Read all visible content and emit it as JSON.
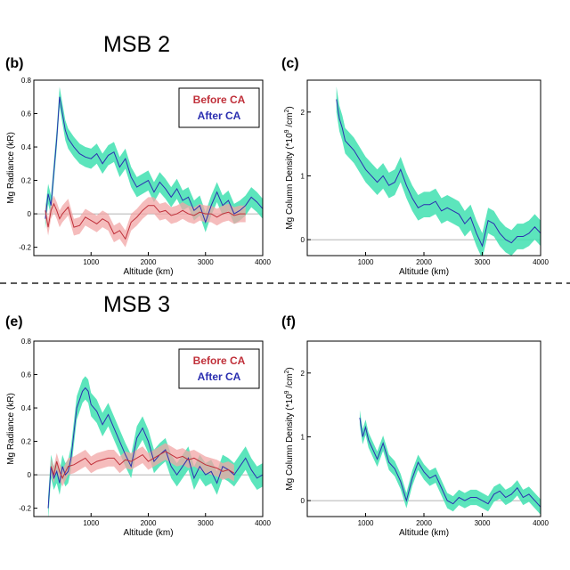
{
  "sections": [
    "MSB 2",
    "MSB 3"
  ],
  "legend": {
    "before": "Before CA",
    "after": "After CA"
  },
  "colors": {
    "before_line": "#c0303a",
    "before_band": "#f2a6a6",
    "after_line": "#2b2fb0",
    "after_band": "#3fe0b0",
    "zero_line": "#999999"
  },
  "chart_data": [
    {
      "panel": "(b)",
      "type": "line",
      "title": "",
      "xlabel": "Altitude (km)",
      "ylabel": "Mg Radiance (kR)",
      "xlim": [
        0,
        4000
      ],
      "ylim": [
        -0.25,
        0.8
      ],
      "xticks": [
        1000,
        2000,
        3000,
        4000
      ],
      "yticks": [
        -0.2,
        0,
        0.2,
        0.4,
        0.6,
        0.8
      ],
      "xtick_labels": [
        "1000",
        "2000",
        "3000",
        "4000"
      ],
      "ytick_labels": [
        "-0.2",
        "0",
        "0.2",
        "0.4",
        "0.6",
        "0.8"
      ],
      "legend": true,
      "series": [
        {
          "name": "After CA",
          "band": 0.06,
          "x": [
            200,
            250,
            300,
            350,
            400,
            450,
            500,
            550,
            600,
            700,
            800,
            900,
            1000,
            1100,
            1200,
            1300,
            1400,
            1500,
            1600,
            1700,
            1800,
            1900,
            2000,
            2100,
            2200,
            2300,
            2400,
            2500,
            2600,
            2700,
            2800,
            2900,
            3000,
            3100,
            3200,
            3300,
            3400,
            3500,
            3600,
            3700,
            3800,
            3900,
            4000
          ],
          "values": [
            -0.03,
            0.12,
            0.05,
            0.25,
            0.45,
            0.7,
            0.6,
            0.5,
            0.45,
            0.4,
            0.36,
            0.34,
            0.33,
            0.36,
            0.3,
            0.35,
            0.37,
            0.28,
            0.33,
            0.22,
            0.16,
            0.18,
            0.2,
            0.13,
            0.19,
            0.15,
            0.1,
            0.15,
            0.08,
            0.1,
            0.02,
            0.05,
            -0.05,
            0.05,
            0.13,
            0.05,
            0.08,
            0.0,
            0.02,
            0.05,
            0.1,
            0.07,
            0.03
          ]
        },
        {
          "name": "Before CA",
          "band": 0.05,
          "x": [
            200,
            250,
            300,
            350,
            400,
            450,
            500,
            600,
            700,
            800,
            900,
            1000,
            1100,
            1200,
            1300,
            1400,
            1500,
            1600,
            1700,
            1800,
            1900,
            2000,
            2100,
            2200,
            2300,
            2400,
            2500,
            2600,
            2700,
            2800,
            2900,
            3000,
            3100,
            3200,
            3300,
            3400,
            3500,
            3600,
            3700
          ],
          "values": [
            0.02,
            -0.08,
            0.02,
            0.06,
            0.02,
            -0.03,
            0.0,
            0.04,
            -0.08,
            -0.07,
            -0.02,
            -0.04,
            -0.06,
            -0.03,
            -0.05,
            -0.12,
            -0.1,
            -0.15,
            -0.05,
            -0.02,
            0.02,
            0.05,
            0.05,
            0.01,
            0.02,
            -0.01,
            0.0,
            0.02,
            0.0,
            -0.01,
            0.01,
            0.0,
            0.0,
            -0.02,
            0.0,
            0.01,
            -0.01,
            0.0,
            0.0
          ]
        }
      ]
    },
    {
      "panel": "(c)",
      "type": "line",
      "title": "",
      "xlabel": "Altitude (km)",
      "ylabel": "Mg Column Density (*10^9 /cm^2)",
      "xlim": [
        0,
        4000
      ],
      "ylim": [
        -0.25,
        2.5
      ],
      "xticks": [
        1000,
        2000,
        3000,
        4000
      ],
      "yticks": [
        0,
        1,
        2
      ],
      "xtick_labels": [
        "1000",
        "2000",
        "3000",
        "4000"
      ],
      "ytick_labels": [
        "0",
        "1",
        "2"
      ],
      "legend": false,
      "series": [
        {
          "name": "After CA",
          "band": 0.2,
          "x": [
            500,
            550,
            600,
            650,
            700,
            800,
            900,
            1000,
            1100,
            1200,
            1300,
            1400,
            1500,
            1600,
            1700,
            1800,
            1900,
            2000,
            2100,
            2200,
            2300,
            2400,
            2500,
            2600,
            2700,
            2800,
            2900,
            3000,
            3100,
            3200,
            3300,
            3400,
            3500,
            3600,
            3700,
            3800,
            3900,
            4000
          ],
          "values": [
            2.2,
            1.9,
            1.75,
            1.55,
            1.5,
            1.4,
            1.25,
            1.1,
            1.0,
            0.9,
            1.0,
            0.85,
            0.9,
            1.1,
            0.85,
            0.65,
            0.5,
            0.55,
            0.55,
            0.6,
            0.45,
            0.5,
            0.45,
            0.4,
            0.25,
            0.35,
            0.1,
            -0.1,
            0.3,
            0.25,
            0.1,
            0.0,
            -0.05,
            0.05,
            0.05,
            0.1,
            0.2,
            0.1
          ]
        }
      ]
    },
    {
      "panel": "(e)",
      "type": "line",
      "title": "",
      "xlabel": "Altitude (km)",
      "ylabel": "Mg Radiance (kR)",
      "xlim": [
        0,
        4000
      ],
      "ylim": [
        -0.25,
        0.8
      ],
      "xticks": [
        1000,
        2000,
        3000,
        4000
      ],
      "yticks": [
        -0.2,
        0,
        0.2,
        0.4,
        0.6,
        0.8
      ],
      "xtick_labels": [
        "1000",
        "2000",
        "3000",
        "4000"
      ],
      "ytick_labels": [
        "-0.2",
        "0",
        "0.2",
        "0.4",
        "0.6",
        "0.8"
      ],
      "legend": true,
      "series": [
        {
          "name": "After CA",
          "band": 0.07,
          "x": [
            250,
            300,
            350,
            400,
            450,
            500,
            550,
            600,
            650,
            700,
            750,
            800,
            850,
            900,
            950,
            1000,
            1100,
            1200,
            1300,
            1400,
            1500,
            1600,
            1700,
            1800,
            1900,
            2000,
            2100,
            2200,
            2300,
            2400,
            2500,
            2600,
            2700,
            2800,
            2900,
            3000,
            3100,
            3200,
            3300,
            3400,
            3500,
            3600,
            3700,
            3800,
            3900,
            4000
          ],
          "values": [
            -0.2,
            0.05,
            -0.02,
            0.02,
            -0.05,
            0.05,
            0.0,
            0.02,
            0.1,
            0.25,
            0.4,
            0.45,
            0.5,
            0.52,
            0.5,
            0.42,
            0.38,
            0.3,
            0.36,
            0.28,
            0.2,
            0.12,
            0.05,
            0.22,
            0.28,
            0.2,
            0.08,
            0.12,
            0.15,
            0.05,
            0.0,
            0.05,
            0.1,
            -0.02,
            0.05,
            0.0,
            0.02,
            -0.05,
            0.05,
            0.03,
            0.0,
            0.05,
            0.1,
            0.03,
            -0.02,
            0.0
          ]
        },
        {
          "name": "Before CA",
          "band": 0.05,
          "x": [
            300,
            350,
            400,
            450,
            500,
            600,
            700,
            800,
            900,
            1000,
            1100,
            1200,
            1300,
            1400,
            1500,
            1600,
            1700,
            1800,
            1900,
            2000,
            2100,
            2200,
            2300,
            2400,
            2500,
            2600,
            2700,
            2800,
            2900,
            3000,
            3100,
            3200,
            3300,
            3400,
            3500
          ],
          "values": [
            0.05,
            0.0,
            0.08,
            0.02,
            -0.02,
            0.05,
            0.06,
            0.08,
            0.1,
            0.06,
            0.08,
            0.09,
            0.1,
            0.1,
            0.06,
            0.09,
            0.08,
            0.1,
            0.12,
            0.08,
            0.1,
            0.12,
            0.14,
            0.12,
            0.1,
            0.11,
            0.09,
            0.1,
            0.08,
            0.06,
            0.05,
            0.04,
            0.02,
            0.03,
            0.01
          ]
        }
      ]
    },
    {
      "panel": "(f)",
      "type": "line",
      "title": "",
      "xlabel": "Altitude (km)",
      "ylabel": "Mg Column Density (*10^9 /cm^2)",
      "xlim": [
        0,
        4000
      ],
      "ylim": [
        -0.25,
        2.5
      ],
      "xticks": [
        1000,
        2000,
        3000,
        4000
      ],
      "yticks": [
        0,
        1,
        2
      ],
      "xtick_labels": [
        "1000",
        "2000",
        "3000",
        "4000"
      ],
      "ytick_labels": [
        "0",
        "1",
        "2"
      ],
      "legend": false,
      "series": [
        {
          "name": "After CA",
          "band": 0.12,
          "x": [
            900,
            950,
            1000,
            1050,
            1100,
            1200,
            1300,
            1400,
            1500,
            1600,
            1700,
            1800,
            1900,
            2000,
            2100,
            2200,
            2300,
            2400,
            2500,
            2600,
            2700,
            2800,
            2900,
            3000,
            3100,
            3200,
            3300,
            3400,
            3500,
            3600,
            3700,
            3800,
            3900,
            4000
          ],
          "values": [
            1.3,
            1.0,
            1.15,
            0.95,
            0.85,
            0.65,
            0.9,
            0.6,
            0.5,
            0.3,
            0.0,
            0.35,
            0.6,
            0.45,
            0.35,
            0.4,
            0.2,
            0.0,
            -0.05,
            0.05,
            0.0,
            0.05,
            0.05,
            0.0,
            -0.05,
            0.1,
            0.15,
            0.05,
            0.1,
            0.2,
            0.05,
            0.1,
            0.0,
            -0.1
          ]
        }
      ]
    }
  ]
}
